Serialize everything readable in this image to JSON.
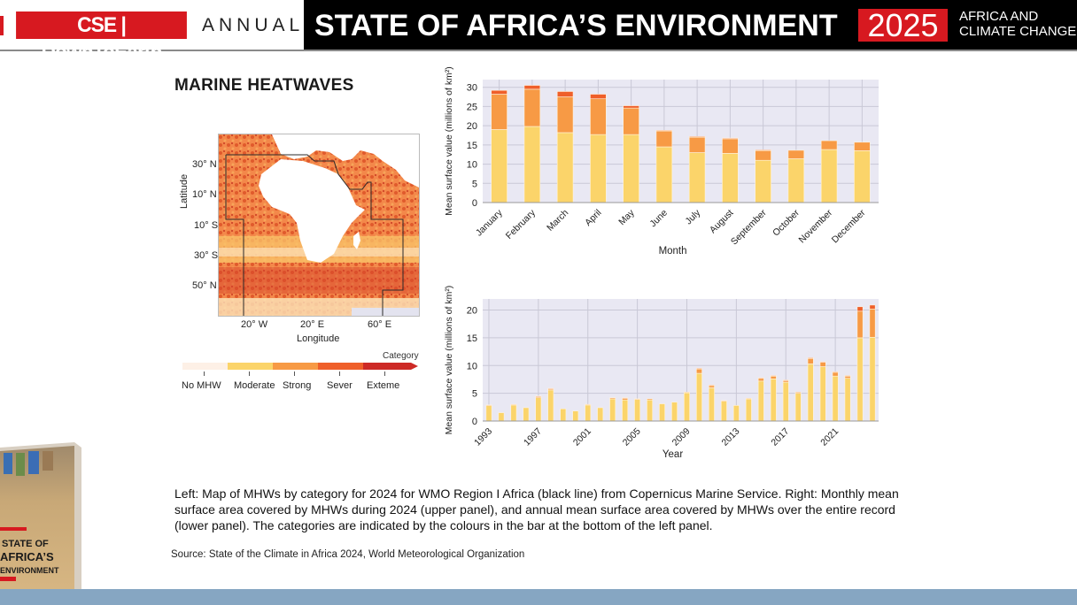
{
  "header": {
    "brand": "CSE | DownToEarth",
    "annual": "ANNUAL",
    "title": "STATE OF AFRICA’S ENVIRONMENT",
    "year": "2025",
    "subtitle_line1": "AFRICA AND",
    "subtitle_line2": "CLIMATE CHANGE"
  },
  "section_title": "MARINE HEATWAVES",
  "map": {
    "ylabel": "Latitude",
    "xlabel": "Longitude",
    "lat_ticks": [
      "30° N",
      "10° N",
      "10° S",
      "30° S",
      "50° N"
    ],
    "lon_ticks": [
      "20° W",
      "20° E",
      "60° E"
    ],
    "legend_title": "Category",
    "legend": [
      {
        "label": "No MHW",
        "color": "#fdf0e6"
      },
      {
        "label": "Moderate",
        "color": "#fbd46a"
      },
      {
        "label": "Strong",
        "color": "#f79a45"
      },
      {
        "label": "Sever",
        "color": "#ef5f2a"
      },
      {
        "label": "Exteme",
        "color": "#cd2a26"
      }
    ]
  },
  "chart_data": [
    {
      "type": "bar",
      "stacked": true,
      "title": "",
      "xlabel": "Month",
      "ylabel": "Mean surface value (millions of km²)",
      "ylim": [
        0,
        32
      ],
      "yticks": [
        0,
        5,
        10,
        15,
        20,
        25,
        30
      ],
      "grid": true,
      "categories": [
        "January",
        "February",
        "March",
        "April",
        "May",
        "June",
        "July",
        "August",
        "September",
        "October",
        "November",
        "December"
      ],
      "series": [
        {
          "name": "Moderate",
          "color": "#fbd46a",
          "values": [
            19.0,
            19.8,
            18.2,
            17.7,
            17.7,
            14.5,
            13.0,
            12.8,
            11.0,
            11.4,
            13.8,
            13.5
          ]
        },
        {
          "name": "Strong",
          "color": "#f79a45",
          "values": [
            9.2,
            9.7,
            9.3,
            9.3,
            6.9,
            4.2,
            4.0,
            3.8,
            2.6,
            2.2,
            2.3,
            2.2
          ]
        },
        {
          "name": "Sever",
          "color": "#ef5f2a",
          "values": [
            1.0,
            1.0,
            1.4,
            1.2,
            0.6,
            0.1,
            0.2,
            0.2,
            0.1,
            0.0,
            0.0,
            0.0
          ]
        }
      ]
    },
    {
      "type": "bar",
      "stacked": true,
      "title": "",
      "xlabel": "Year",
      "ylabel": "Mean surface value (millions of km²)",
      "ylim": [
        0,
        22
      ],
      "yticks": [
        0,
        5,
        10,
        15,
        20
      ],
      "xtick_labels": [
        "1993",
        "1997",
        "2001",
        "2005",
        "2009",
        "2013",
        "2017",
        "2021"
      ],
      "grid": true,
      "categories": [
        "1993",
        "1994",
        "1995",
        "1996",
        "1997",
        "1998",
        "1999",
        "2000",
        "2001",
        "2002",
        "2003",
        "2004",
        "2005",
        "2006",
        "2007",
        "2008",
        "2009",
        "2010",
        "2011",
        "2012",
        "2013",
        "2014",
        "2015",
        "2016",
        "2017",
        "2018",
        "2019",
        "2020",
        "2021",
        "2022",
        "2023",
        "2024"
      ],
      "series": [
        {
          "name": "Moderate",
          "color": "#fbd46a",
          "values": [
            2.8,
            1.5,
            2.9,
            2.4,
            4.2,
            5.6,
            2.2,
            1.8,
            2.9,
            2.4,
            4.0,
            3.8,
            3.9,
            3.8,
            3.1,
            3.4,
            5.1,
            8.6,
            6.0,
            3.6,
            2.8,
            4.0,
            7.2,
            7.6,
            7.0,
            5.0,
            10.3,
            9.8,
            8.1,
            7.7,
            15.0,
            15.1
          ]
        },
        {
          "name": "Strong",
          "color": "#f79a45",
          "values": [
            0.1,
            0.0,
            0.1,
            0.0,
            0.2,
            0.2,
            0.0,
            0.0,
            0.1,
            0.0,
            0.2,
            0.3,
            0.1,
            0.2,
            0.0,
            0.0,
            0.1,
            0.8,
            0.4,
            0.1,
            0.0,
            0.1,
            0.5,
            0.5,
            0.3,
            0.2,
            1.0,
            0.8,
            0.7,
            0.4,
            4.8,
            5.1
          ]
        },
        {
          "name": "Sever",
          "color": "#ef5f2a",
          "values": [
            0.0,
            0.0,
            0.0,
            0.0,
            0.1,
            0.1,
            0.0,
            0.0,
            0.0,
            0.0,
            0.0,
            0.1,
            0.0,
            0.0,
            0.0,
            0.0,
            0.0,
            0.1,
            0.1,
            0.0,
            0.0,
            0.0,
            0.1,
            0.1,
            0.1,
            0.0,
            0.1,
            0.1,
            0.1,
            0.1,
            0.8,
            0.7
          ]
        }
      ]
    }
  ],
  "caption": "Left: Map of MHWs by category for 2024 for WMO Region I Africa (black line) from Copernicus Marine Service. Right: Monthly mean surface area covered by MHWs during 2024 (upper panel), and annual mean surface area covered by MHWs over the entire record (lower panel). The categories are indicated by the colours in the bar at the bottom of the left panel.",
  "source": "Source: State of the Climate in Africa 2024,  World Meteorological Organization",
  "book_cover": {
    "line1": "STATE OF",
    "line2": "AFRICA’S",
    "line3": "ENVIRONMENT"
  }
}
